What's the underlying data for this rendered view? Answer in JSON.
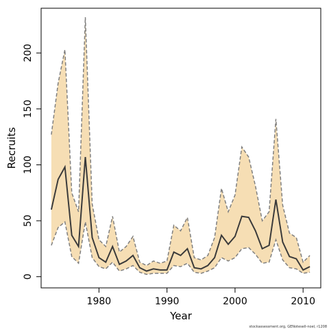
{
  "chart_data": {
    "type": "line",
    "xlabel": "Year",
    "ylabel": "Recruits",
    "footer": "stockassessment.org, GENotesell-noel, r1208",
    "x": [
      1973,
      1974,
      1975,
      1976,
      1977,
      1978,
      1979,
      1980,
      1981,
      1982,
      1983,
      1984,
      1985,
      1986,
      1987,
      1988,
      1989,
      1990,
      1991,
      1992,
      1993,
      1994,
      1995,
      1996,
      1997,
      1998,
      1999,
      2000,
      2001,
      2002,
      2003,
      2004,
      2005,
      2006,
      2007,
      2008,
      2009,
      2010,
      2011
    ],
    "values": [
      60,
      87,
      98,
      37,
      27,
      107,
      35,
      17,
      13,
      27,
      11,
      14,
      19,
      8,
      5,
      7,
      6,
      6,
      22,
      19,
      25,
      8,
      7,
      10,
      17,
      37,
      29,
      36,
      54,
      53,
      41,
      25,
      28,
      69,
      31,
      18,
      16,
      6,
      9
    ],
    "upper": [
      127,
      173,
      203,
      75,
      58,
      232,
      65,
      33,
      27,
      54,
      22,
      27,
      36,
      13,
      10,
      14,
      12,
      14,
      46,
      41,
      53,
      17,
      15,
      19,
      35,
      79,
      58,
      73,
      116,
      107,
      81,
      50,
      58,
      141,
      64,
      39,
      35,
      13,
      19
    ],
    "lower": [
      28,
      44,
      49,
      18,
      12,
      49,
      17,
      9,
      7,
      13,
      5,
      7,
      10,
      4,
      2,
      3,
      3,
      3,
      10,
      9,
      12,
      4,
      3,
      5,
      8,
      17,
      14,
      17,
      25,
      26,
      20,
      12,
      13,
      33,
      15,
      8,
      7,
      3,
      4
    ],
    "color": "#3a3a3a",
    "band_color": "#f6deb4",
    "band_line_color": "#7f7f7f",
    "xlim": [
      1971.5,
      2012.6
    ],
    "ylim": [
      -10,
      240
    ],
    "xticks": [
      1980,
      1990,
      2000,
      2010
    ],
    "yticks": [
      0,
      50,
      100,
      150,
      200
    ]
  }
}
